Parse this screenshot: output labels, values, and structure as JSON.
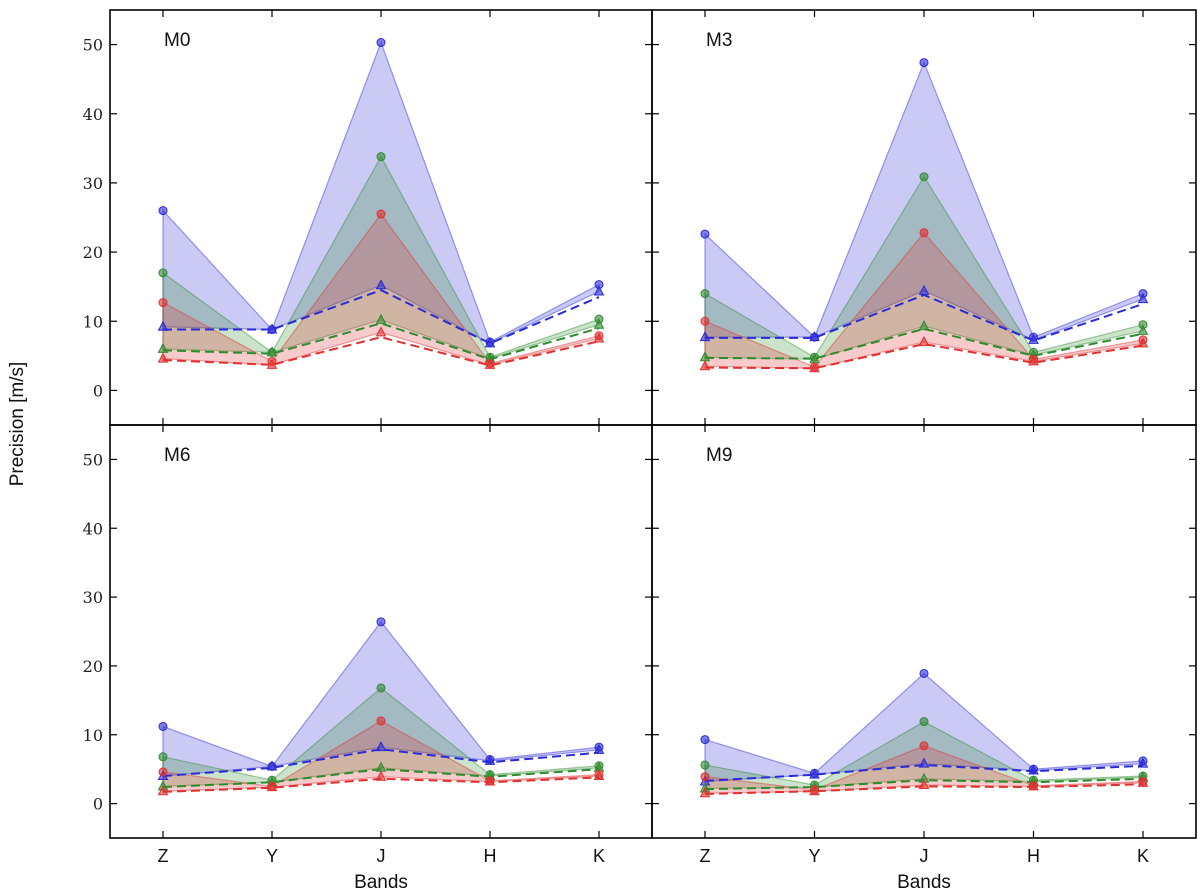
{
  "chart_data": {
    "type": "line",
    "layout": "2x2 panels, shared axes",
    "xlabel": "Bands",
    "ylabel": "Precision [m/s]",
    "categories": [
      "Z",
      "Y",
      "J",
      "H",
      "K"
    ],
    "ylim": [
      -5,
      55
    ],
    "yticks": [
      0,
      10,
      20,
      30,
      40,
      50
    ],
    "grid": false,
    "colors": {
      "blue": "#2a2ad6",
      "green": "#2e8b2e",
      "red": "#e03030"
    },
    "panels": [
      {
        "title": "M0",
        "series": [
          {
            "color": "blue",
            "upper": [
              26.0,
              8.8,
              50.3,
              7.0,
              15.3
            ],
            "lower": [
              9.2,
              8.8,
              15.2,
              6.8,
              14.3
            ],
            "dashed": [
              8.8,
              8.8,
              14.5,
              6.8,
              13.5
            ]
          },
          {
            "color": "green",
            "upper": [
              17.0,
              5.5,
              33.8,
              4.8,
              10.3
            ],
            "lower": [
              6.0,
              5.5,
              10.2,
              4.6,
              9.5
            ],
            "dashed": [
              5.8,
              5.3,
              9.7,
              4.5,
              9.0
            ]
          },
          {
            "color": "red",
            "upper": [
              12.7,
              4.2,
              25.5,
              3.9,
              7.9
            ],
            "lower": [
              4.6,
              3.7,
              8.4,
              3.7,
              7.5
            ],
            "dashed": [
              4.4,
              3.7,
              7.7,
              3.6,
              7.1
            ]
          }
        ]
      },
      {
        "title": "M3",
        "series": [
          {
            "color": "blue",
            "upper": [
              22.6,
              7.7,
              47.4,
              7.7,
              14.0
            ],
            "lower": [
              7.7,
              7.7,
              14.4,
              7.3,
              13.2
            ],
            "dashed": [
              7.6,
              7.6,
              13.8,
              7.2,
              12.5
            ]
          },
          {
            "color": "green",
            "upper": [
              14.0,
              4.8,
              30.9,
              5.5,
              9.5
            ],
            "lower": [
              4.8,
              4.5,
              9.3,
              5.1,
              8.6
            ],
            "dashed": [
              4.7,
              4.6,
              8.9,
              5.0,
              8.2
            ]
          },
          {
            "color": "red",
            "upper": [
              10.0,
              3.4,
              22.8,
              4.5,
              7.3
            ],
            "lower": [
              3.5,
              3.2,
              7.0,
              4.2,
              6.8
            ],
            "dashed": [
              3.3,
              3.2,
              6.7,
              4.0,
              6.5
            ]
          }
        ]
      },
      {
        "title": "M6",
        "series": [
          {
            "color": "blue",
            "upper": [
              11.2,
              5.4,
              26.4,
              6.4,
              8.2
            ],
            "lower": [
              4.0,
              5.4,
              8.2,
              6.2,
              7.8
            ],
            "dashed": [
              4.0,
              5.2,
              7.9,
              6.0,
              7.4
            ]
          },
          {
            "color": "green",
            "upper": [
              6.8,
              3.4,
              16.8,
              4.2,
              5.5
            ],
            "lower": [
              2.5,
              3.1,
              5.2,
              4.0,
              5.2
            ],
            "dashed": [
              2.4,
              3.1,
              5.0,
              3.9,
              5.0
            ]
          },
          {
            "color": "red",
            "upper": [
              4.6,
              2.5,
              12.0,
              3.3,
              4.2
            ],
            "lower": [
              1.8,
              2.4,
              3.9,
              3.2,
              4.0
            ],
            "dashed": [
              1.7,
              2.3,
              3.6,
              3.1,
              3.8
            ]
          }
        ]
      },
      {
        "title": "M9",
        "series": [
          {
            "color": "blue",
            "upper": [
              9.3,
              4.4,
              18.9,
              5.0,
              6.2
            ],
            "lower": [
              3.2,
              4.2,
              5.8,
              4.8,
              5.8
            ],
            "dashed": [
              3.3,
              4.2,
              5.6,
              4.7,
              5.5
            ]
          },
          {
            "color": "green",
            "upper": [
              5.6,
              2.7,
              11.9,
              3.4,
              4.0
            ],
            "lower": [
              2.2,
              2.4,
              3.6,
              3.2,
              3.8
            ],
            "dashed": [
              2.1,
              2.4,
              3.4,
              3.1,
              3.6
            ]
          },
          {
            "color": "red",
            "upper": [
              3.9,
              2.0,
              8.4,
              2.6,
              3.2
            ],
            "lower": [
              1.5,
              1.8,
              2.7,
              2.5,
              3.0
            ],
            "dashed": [
              1.4,
              1.8,
              2.5,
              2.4,
              2.8
            ]
          }
        ]
      }
    ]
  }
}
